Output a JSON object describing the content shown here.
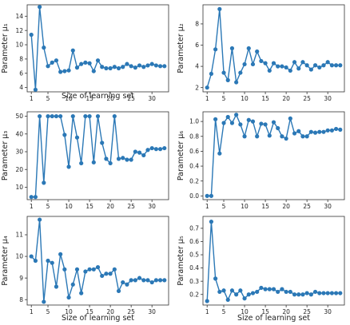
{
  "figure": {
    "grid": false,
    "series_color": "#2b78b6"
  },
  "chart_data": [
    {
      "type": "line",
      "ylabel": "Parameter μ₁",
      "xlabel": "Size of learning set",
      "xlim": [
        0,
        34
      ],
      "ylim": [
        3.4,
        15.6
      ],
      "xticks": [
        1,
        5,
        10,
        15,
        20,
        25,
        30
      ],
      "yticks": [
        4,
        6,
        8,
        10,
        12,
        14
      ],
      "x": [
        1,
        2,
        3,
        4,
        5,
        6,
        7,
        8,
        9,
        10,
        11,
        12,
        13,
        14,
        15,
        16,
        17,
        18,
        19,
        20,
        21,
        22,
        23,
        24,
        25,
        26,
        27,
        28,
        29,
        30,
        31,
        32,
        33
      ],
      "series": [
        {
          "values": [
            11.4,
            3.7,
            15.3,
            9.6,
            7.0,
            7.5,
            7.8,
            6.2,
            6.3,
            6.4,
            9.2,
            6.8,
            7.3,
            7.5,
            7.4,
            6.3,
            7.8,
            6.9,
            6.7,
            6.7,
            6.9,
            6.7,
            6.9,
            7.3,
            7.0,
            6.8,
            7.1,
            6.9,
            7.1,
            7.3,
            7.1,
            7.0,
            7.0
          ]
        }
      ]
    },
    {
      "type": "line",
      "ylabel": "Parameter μ₂",
      "xlabel": "",
      "xlim": [
        0,
        34
      ],
      "ylim": [
        1.6,
        9.8
      ],
      "xticks": [
        1,
        5,
        10,
        15,
        20,
        25,
        30
      ],
      "yticks": [
        2,
        4,
        6,
        8
      ],
      "x": [
        1,
        2,
        3,
        4,
        5,
        6,
        7,
        8,
        9,
        10,
        11,
        12,
        13,
        14,
        15,
        16,
        17,
        18,
        19,
        20,
        21,
        22,
        23,
        24,
        25,
        26,
        27,
        28,
        29,
        30,
        31,
        32,
        33
      ],
      "series": [
        {
          "values": [
            2.0,
            3.3,
            5.6,
            9.4,
            3.4,
            2.7,
            5.7,
            2.5,
            3.4,
            4.2,
            5.7,
            4.2,
            5.4,
            4.5,
            4.3,
            3.6,
            4.3,
            4.0,
            4.0,
            3.9,
            3.6,
            4.4,
            3.8,
            4.4,
            4.1,
            3.7,
            4.1,
            3.9,
            4.1,
            4.4,
            4.1,
            4.1,
            4.1
          ]
        }
      ]
    },
    {
      "type": "line",
      "ylabel": "Parameter μ₃",
      "xlabel": "",
      "xlim": [
        0,
        34
      ],
      "ylim": [
        3.0,
        52.5
      ],
      "xticks": [
        1,
        5,
        10,
        15,
        20,
        25,
        30
      ],
      "yticks": [
        10,
        20,
        30,
        40,
        50
      ],
      "x": [
        1,
        2,
        3,
        4,
        5,
        6,
        7,
        8,
        9,
        10,
        11,
        12,
        13,
        14,
        15,
        16,
        17,
        18,
        19,
        20,
        21,
        22,
        23,
        24,
        25,
        26,
        27,
        28,
        29,
        30,
        31,
        32,
        33
      ],
      "series": [
        {
          "values": [
            4.5,
            4.5,
            50,
            12.5,
            50,
            50,
            50,
            50,
            39.5,
            21.5,
            50,
            38,
            23.5,
            50,
            50,
            24,
            50,
            35,
            26,
            23.5,
            50,
            26,
            26.5,
            25.5,
            25.5,
            30,
            29.5,
            28,
            31,
            32,
            31.5,
            31.5,
            32
          ]
        }
      ]
    },
    {
      "type": "line",
      "ylabel": "Parameter μ₆",
      "xlabel": "",
      "xlim": [
        0,
        34
      ],
      "ylim": [
        -0.05,
        1.13
      ],
      "xticks": [
        1,
        5,
        10,
        15,
        20,
        25,
        30
      ],
      "yticks": [
        0.0,
        0.2,
        0.4,
        0.6,
        0.8,
        1.0
      ],
      "ytick_labels": [
        "0.0",
        "0.2",
        "0.4",
        "0.6",
        "0.8",
        "1.0"
      ],
      "x": [
        1,
        2,
        3,
        4,
        5,
        6,
        7,
        8,
        9,
        10,
        11,
        12,
        13,
        14,
        15,
        16,
        17,
        18,
        19,
        20,
        21,
        22,
        23,
        24,
        25,
        26,
        27,
        28,
        29,
        30,
        31,
        32,
        33
      ],
      "series": [
        {
          "values": [
            0.0,
            0.0,
            1.03,
            0.57,
            0.98,
            1.06,
            0.98,
            1.09,
            0.96,
            0.8,
            1.02,
            1.0,
            0.8,
            0.97,
            0.96,
            0.81,
            0.99,
            0.91,
            0.8,
            0.77,
            1.04,
            0.84,
            0.87,
            0.8,
            0.8,
            0.86,
            0.85,
            0.86,
            0.86,
            0.88,
            0.88,
            0.9,
            0.89
          ]
        }
      ]
    },
    {
      "type": "line",
      "ylabel": "Parameter μ₄",
      "xlabel": "Size of learning set",
      "xlim": [
        0,
        34
      ],
      "ylim": [
        7.75,
        11.85
      ],
      "xticks": [
        1,
        5,
        10,
        15,
        20,
        25,
        30
      ],
      "yticks": [
        8,
        9,
        10,
        11
      ],
      "x": [
        1,
        2,
        3,
        4,
        5,
        6,
        7,
        8,
        9,
        10,
        11,
        12,
        13,
        14,
        15,
        16,
        17,
        18,
        19,
        20,
        21,
        22,
        23,
        24,
        25,
        26,
        27,
        28,
        29,
        30,
        31,
        32,
        33
      ],
      "series": [
        {
          "values": [
            10.0,
            9.8,
            11.7,
            7.9,
            9.8,
            9.7,
            8.6,
            10.1,
            9.4,
            8.1,
            8.7,
            9.4,
            8.3,
            9.3,
            9.4,
            9.4,
            9.5,
            9.1,
            9.2,
            9.2,
            9.4,
            8.4,
            8.8,
            8.7,
            8.9,
            8.9,
            9.0,
            8.9,
            8.9,
            8.8,
            8.9,
            8.9,
            8.9
          ]
        }
      ]
    },
    {
      "type": "line",
      "ylabel": "Parameter μ₅",
      "xlabel": "Size of learning set",
      "xlim": [
        0,
        34
      ],
      "ylim": [
        0.12,
        0.79
      ],
      "xticks": [
        1,
        5,
        10,
        15,
        20,
        25,
        30
      ],
      "yticks": [
        0.2,
        0.3,
        0.4,
        0.5,
        0.6,
        0.7
      ],
      "ytick_labels": [
        "0.2",
        "0.3",
        "0.4",
        "0.5",
        "0.6",
        "0.7"
      ],
      "x": [
        1,
        2,
        3,
        4,
        5,
        6,
        7,
        8,
        9,
        10,
        11,
        12,
        13,
        14,
        15,
        16,
        17,
        18,
        19,
        20,
        21,
        22,
        23,
        24,
        25,
        26,
        27,
        28,
        29,
        30,
        31,
        32,
        33
      ],
      "series": [
        {
          "values": [
            0.15,
            0.75,
            0.32,
            0.22,
            0.23,
            0.16,
            0.23,
            0.2,
            0.23,
            0.17,
            0.2,
            0.21,
            0.22,
            0.25,
            0.24,
            0.24,
            0.24,
            0.22,
            0.24,
            0.22,
            0.22,
            0.2,
            0.2,
            0.2,
            0.21,
            0.2,
            0.22,
            0.21,
            0.21,
            0.21,
            0.21,
            0.21,
            0.21
          ]
        }
      ]
    }
  ]
}
